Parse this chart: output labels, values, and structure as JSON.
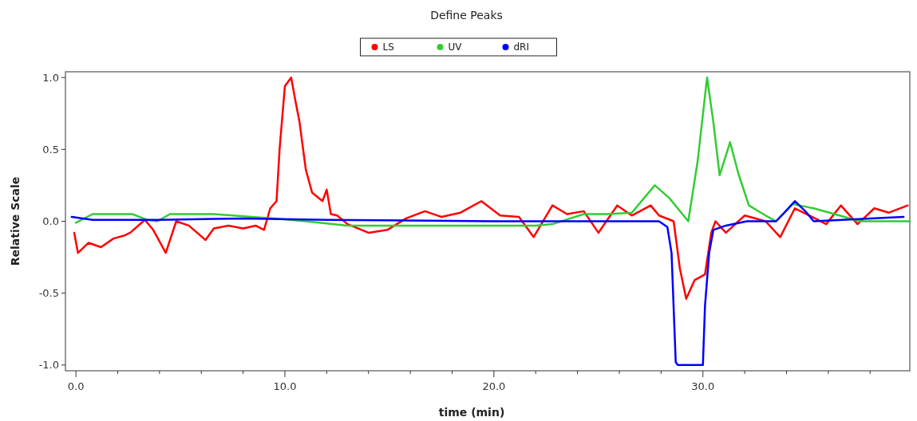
{
  "chart_data": {
    "type": "line",
    "title": "Define Peaks",
    "xlabel": "time (min)",
    "ylabel": "Relative Scale",
    "xlim": [
      -0.5,
      39.9
    ],
    "ylim": [
      -1.04,
      1.04
    ],
    "xticks": [
      {
        "value": 0,
        "label": "0.0"
      },
      {
        "value": 2,
        "label": null
      },
      {
        "value": 4,
        "label": null
      },
      {
        "value": 6,
        "label": null
      },
      {
        "value": 8,
        "label": null
      },
      {
        "value": 10,
        "label": "10.0"
      },
      {
        "value": 12,
        "label": null
      },
      {
        "value": 14,
        "label": null
      },
      {
        "value": 16,
        "label": null
      },
      {
        "value": 18,
        "label": null
      },
      {
        "value": 20,
        "label": "20.0"
      },
      {
        "value": 22,
        "label": null
      },
      {
        "value": 24,
        "label": null
      },
      {
        "value": 26,
        "label": null
      },
      {
        "value": 28,
        "label": null
      },
      {
        "value": 30,
        "label": "30.0"
      },
      {
        "value": 32,
        "label": null
      },
      {
        "value": 34,
        "label": null
      },
      {
        "value": 36,
        "label": null
      },
      {
        "value": 38,
        "label": null
      }
    ],
    "yticks": [
      {
        "value": -1,
        "label": "-1.0"
      },
      {
        "value": -0.5,
        "label": "-0.5"
      },
      {
        "value": 0,
        "label": "0.0"
      },
      {
        "value": 0.5,
        "label": "0.5"
      },
      {
        "value": 1,
        "label": "1.0"
      }
    ],
    "grid": false,
    "legend": "top",
    "series": [
      {
        "name": "LS",
        "color": "#ff0000",
        "x": [
          -0.08,
          0.1,
          0.6,
          1.2,
          1.8,
          2.3,
          2.6,
          3.3,
          3.7,
          4.3,
          4.8,
          5.4,
          6.2,
          6.6,
          7.3,
          8.0,
          8.6,
          9.0,
          9.3,
          9.6,
          9.75,
          10.0,
          10.3,
          10.5,
          10.7,
          11.0,
          11.3,
          11.8,
          12.0,
          12.2,
          12.5,
          13.0,
          14.0,
          14.9,
          15.8,
          16.7,
          17.5,
          18.4,
          19.4,
          20.3,
          21.2,
          21.9,
          22.8,
          23.5,
          24.3,
          25.0,
          25.9,
          26.6,
          27.5,
          27.9,
          28.6,
          28.9,
          29.2,
          29.6,
          30.1,
          30.4,
          30.6,
          31.1,
          32.0,
          33.0,
          33.7,
          34.4,
          35.1,
          35.9,
          36.6,
          37.4,
          38.2,
          38.9,
          39.8
        ],
        "values": [
          -0.08,
          -0.22,
          -0.15,
          -0.18,
          -0.12,
          -0.1,
          -0.08,
          0.01,
          -0.06,
          -0.22,
          0.0,
          -0.03,
          -0.13,
          -0.05,
          -0.03,
          -0.05,
          -0.03,
          -0.06,
          0.09,
          0.14,
          0.51,
          0.94,
          1.0,
          0.84,
          0.69,
          0.36,
          0.2,
          0.14,
          0.22,
          0.05,
          0.04,
          -0.02,
          -0.08,
          -0.06,
          0.02,
          0.07,
          0.03,
          0.06,
          0.14,
          0.04,
          0.03,
          -0.11,
          0.11,
          0.05,
          0.07,
          -0.08,
          0.11,
          0.04,
          0.11,
          0.04,
          0.0,
          -0.33,
          -0.54,
          -0.41,
          -0.37,
          -0.08,
          0.0,
          -0.08,
          0.04,
          0.0,
          -0.11,
          0.09,
          0.04,
          -0.02,
          0.11,
          -0.02,
          0.09,
          0.06,
          0.11
        ]
      },
      {
        "name": "UV",
        "color": "#33cc33",
        "x": [
          0.0,
          0.8,
          2.7,
          3.4,
          3.9,
          4.5,
          6.6,
          8.4,
          9.5,
          11.0,
          13.0,
          18.0,
          22.0,
          22.8,
          24.3,
          25.4,
          26.6,
          27.7,
          28.4,
          29.3,
          29.75,
          30.2,
          30.5,
          30.8,
          31.3,
          31.7,
          32.2,
          33.0,
          33.5,
          34.3,
          35.3,
          36.3,
          37.5,
          39.9
        ],
        "values": [
          -0.01,
          0.05,
          0.05,
          0.01,
          0.0,
          0.05,
          0.05,
          0.03,
          0.02,
          0.0,
          -0.03,
          -0.03,
          -0.03,
          -0.02,
          0.05,
          0.05,
          0.06,
          0.25,
          0.16,
          0.0,
          0.42,
          1.0,
          0.69,
          0.32,
          0.55,
          0.33,
          0.11,
          0.04,
          0.0,
          0.12,
          0.09,
          0.05,
          0.0,
          0.0
        ]
      },
      {
        "name": "dRI",
        "color": "#0000ff",
        "x": [
          -0.2,
          0.8,
          4.0,
          8.0,
          12.0,
          20.0,
          27.9,
          28.3,
          28.5,
          28.7,
          28.8,
          30.0,
          30.1,
          30.3,
          30.5,
          31.1,
          32.1,
          33.5,
          33.9,
          34.4,
          34.9,
          35.3,
          39.6
        ],
        "values": [
          0.03,
          0.01,
          0.01,
          0.02,
          0.01,
          0.0,
          0.0,
          -0.04,
          -0.22,
          -0.98,
          -1.0,
          -1.0,
          -0.59,
          -0.22,
          -0.06,
          -0.03,
          0.0,
          0.0,
          0.06,
          0.14,
          0.07,
          0.0,
          0.03
        ]
      }
    ]
  }
}
